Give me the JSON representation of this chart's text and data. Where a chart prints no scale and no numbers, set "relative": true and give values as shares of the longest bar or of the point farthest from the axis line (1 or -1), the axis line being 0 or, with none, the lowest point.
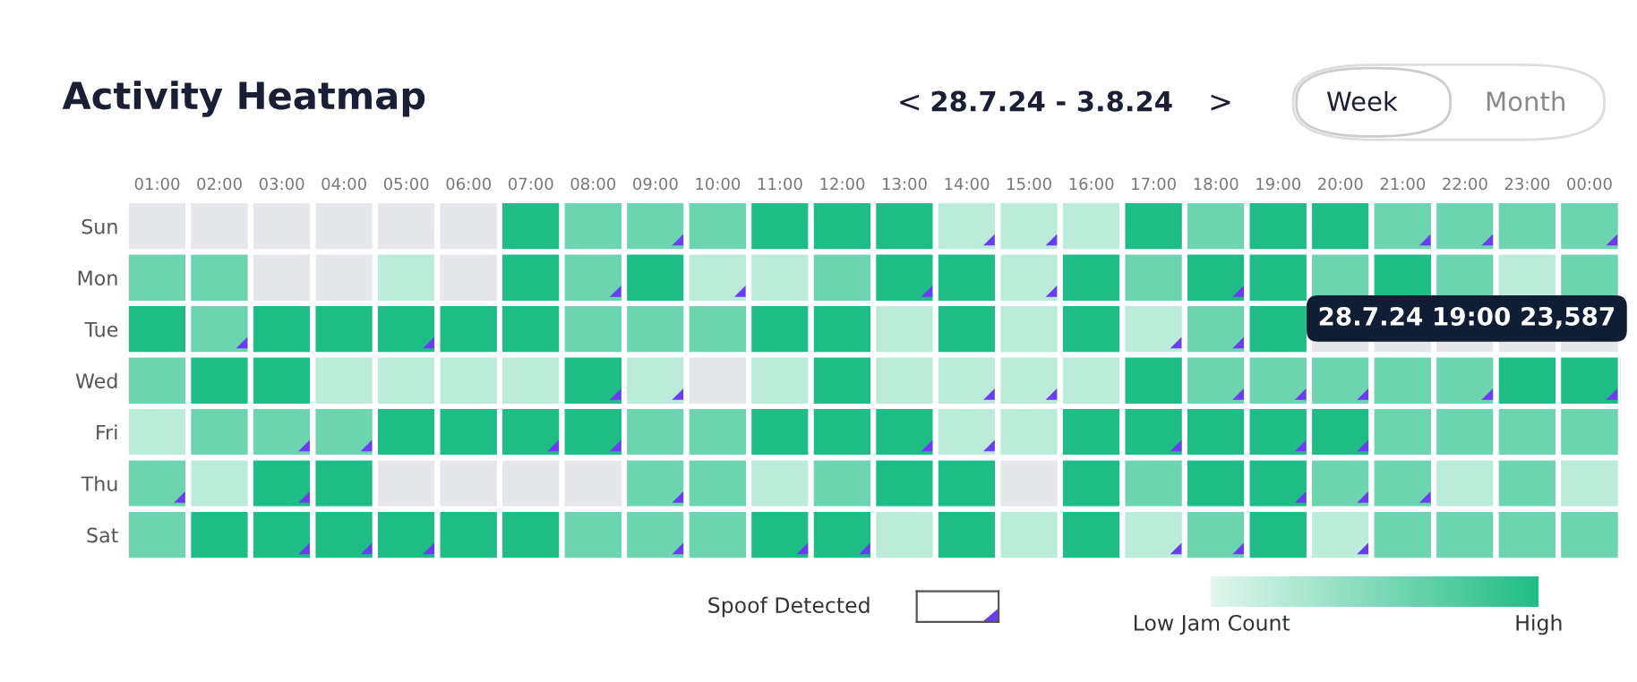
{
  "chart_data": {
    "type": "heatmap",
    "title": "Activity Heatmap",
    "categories": [
      "01:00",
      "02:00",
      "03:00",
      "04:00",
      "05:00",
      "06:00",
      "07:00",
      "08:00",
      "09:00",
      "10:00",
      "11:00",
      "12:00",
      "13:00",
      "14:00",
      "15:00",
      "16:00",
      "17:00",
      "18:00",
      "19:00",
      "20:00",
      "21:00",
      "22:00",
      "23:00",
      "00:00"
    ],
    "y_categories": [
      "Sun",
      "Mon",
      "Tue",
      "Wed",
      "Fri",
      "Thu",
      "Sat"
    ],
    "relative": true,
    "cells": [
      [
        null,
        null,
        null,
        null,
        null,
        null,
        1,
        0.6,
        0.6,
        0.6,
        1,
        1,
        1,
        0.2,
        0.2,
        0.2,
        1,
        0.6,
        1,
        1,
        0.6,
        0.6,
        0.6,
        0.6
      ],
      [
        0.6,
        0.6,
        null,
        null,
        0.2,
        null,
        1,
        0.6,
        1,
        0.2,
        0.2,
        0.6,
        1,
        1,
        0.2,
        1,
        0.6,
        1,
        1,
        0.6,
        1,
        0.6,
        0.2,
        0.6
      ],
      [
        1,
        0.6,
        1,
        1,
        1,
        1,
        1,
        0.6,
        0.6,
        0.6,
        1,
        1,
        0.2,
        1,
        0.2,
        1,
        0.2,
        0.6,
        1,
        null,
        null,
        null,
        null,
        null
      ],
      [
        0.6,
        1,
        1,
        0.2,
        0.2,
        0.2,
        0.2,
        1,
        0.2,
        null,
        0.2,
        1,
        0.2,
        0.2,
        0.2,
        0.2,
        1,
        0.6,
        0.6,
        0.6,
        0.6,
        0.6,
        1,
        1
      ],
      [
        0.2,
        0.6,
        0.6,
        0.6,
        1,
        1,
        1,
        1,
        0.6,
        0.6,
        1,
        1,
        1,
        0.2,
        0.2,
        1,
        1,
        1,
        1,
        1,
        0.6,
        0.6,
        0.6,
        0.6
      ],
      [
        0.6,
        0.2,
        1,
        1,
        null,
        null,
        null,
        null,
        0.6,
        0.6,
        0.2,
        0.6,
        1,
        1,
        null,
        1,
        0.6,
        1,
        1,
        0.6,
        0.6,
        0.2,
        0.6,
        0.2
      ],
      [
        0.6,
        1,
        1,
        1,
        1,
        1,
        1,
        0.6,
        0.6,
        0.6,
        1,
        1,
        0.2,
        1,
        0.2,
        1,
        0.2,
        0.6,
        1,
        0.2,
        0.6,
        0.6,
        0.6,
        0.6
      ]
    ],
    "cell_labels": [
      [
        null,
        null,
        null,
        null,
        null,
        null,
        null,
        null,
        "◢",
        null,
        null,
        null,
        null,
        "◢",
        "◢",
        null,
        null,
        null,
        null,
        null,
        "◢",
        "◢",
        null,
        "◢"
      ],
      [
        null,
        null,
        null,
        null,
        null,
        null,
        null,
        "◢",
        null,
        "◢",
        null,
        null,
        "◢",
        null,
        "◢",
        null,
        null,
        "◢",
        null,
        null,
        null,
        null,
        null,
        null
      ],
      [
        null,
        "◢",
        null,
        null,
        "◢",
        null,
        null,
        null,
        null,
        null,
        null,
        null,
        null,
        null,
        null,
        null,
        "◢",
        "◢",
        null,
        null,
        null,
        null,
        null,
        null
      ],
      [
        null,
        null,
        null,
        null,
        null,
        null,
        null,
        "◢",
        "◢",
        null,
        null,
        null,
        null,
        "◢",
        "◢",
        null,
        null,
        "◢",
        "◢",
        "◢",
        null,
        "◢",
        null,
        "◢"
      ],
      [
        null,
        null,
        "◢",
        "◢",
        null,
        null,
        "◢",
        "◢",
        null,
        null,
        null,
        null,
        "◢",
        "◢",
        null,
        null,
        "◢",
        null,
        "◢",
        "◢",
        null,
        null,
        null,
        null
      ],
      [
        "◢",
        null,
        "◢",
        null,
        null,
        null,
        null,
        null,
        "◢",
        null,
        null,
        null,
        null,
        null,
        null,
        null,
        null,
        null,
        "◢",
        "◢",
        "◢",
        null,
        null,
        null
      ],
      [
        null,
        null,
        "◢",
        "◢",
        "◢",
        null,
        null,
        null,
        "◢",
        null,
        "◢",
        "◢",
        null,
        null,
        null,
        null,
        "◢",
        "◢",
        null,
        "◢",
        null,
        null,
        null,
        null
      ]
    ],
    "clim": [
      0,
      1
    ],
    "cticks": [
      {
        "value": 0,
        "label": "Low Jam Count"
      },
      {
        "value": 1,
        "label": "High"
      }
    ],
    "colors": [
      "#e2f6ee",
      "#1fbd86"
    ],
    "annotations": [
      "<",
      "28.7.24 - 3.8.24",
      ">",
      "Week",
      "Month",
      "28.7.24 19:00 23,587",
      "Spoof Detected"
    ]
  }
}
